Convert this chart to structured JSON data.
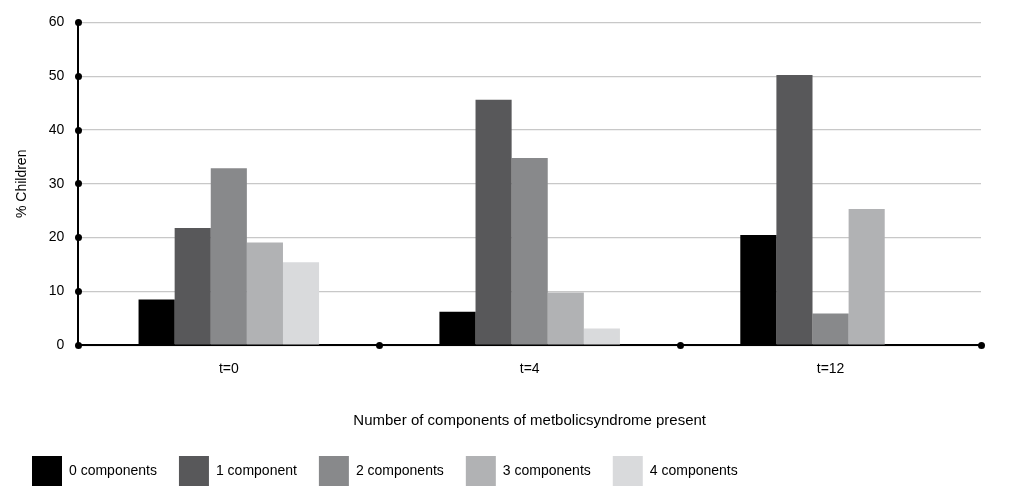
{
  "chart_data": {
    "type": "bar",
    "xlabel": "Number of components of metbolicsyndrome present",
    "ylabel": "% Children",
    "categories": [
      "t=0",
      "t=4",
      "t=12"
    ],
    "series": [
      {
        "name": "0 components",
        "color": "#000000",
        "values": [
          8.5,
          6.2,
          20.5
        ]
      },
      {
        "name": "1 component",
        "color": "#58585a",
        "values": [
          21.8,
          45.6,
          50.2
        ]
      },
      {
        "name": "2 components",
        "color": "#88898b",
        "values": [
          32.9,
          34.8,
          5.9
        ]
      },
      {
        "name": "3 components",
        "color": "#b1b2b4",
        "values": [
          19.1,
          9.8,
          25.3
        ]
      },
      {
        "name": "4 components",
        "color": "#d9dadc",
        "values": [
          15.4,
          3.1,
          0
        ]
      }
    ],
    "ylim": [
      0,
      60
    ],
    "yticks": [
      0,
      10,
      20,
      30,
      40,
      50,
      60
    ],
    "grid": "y",
    "legend": "bottom left"
  }
}
